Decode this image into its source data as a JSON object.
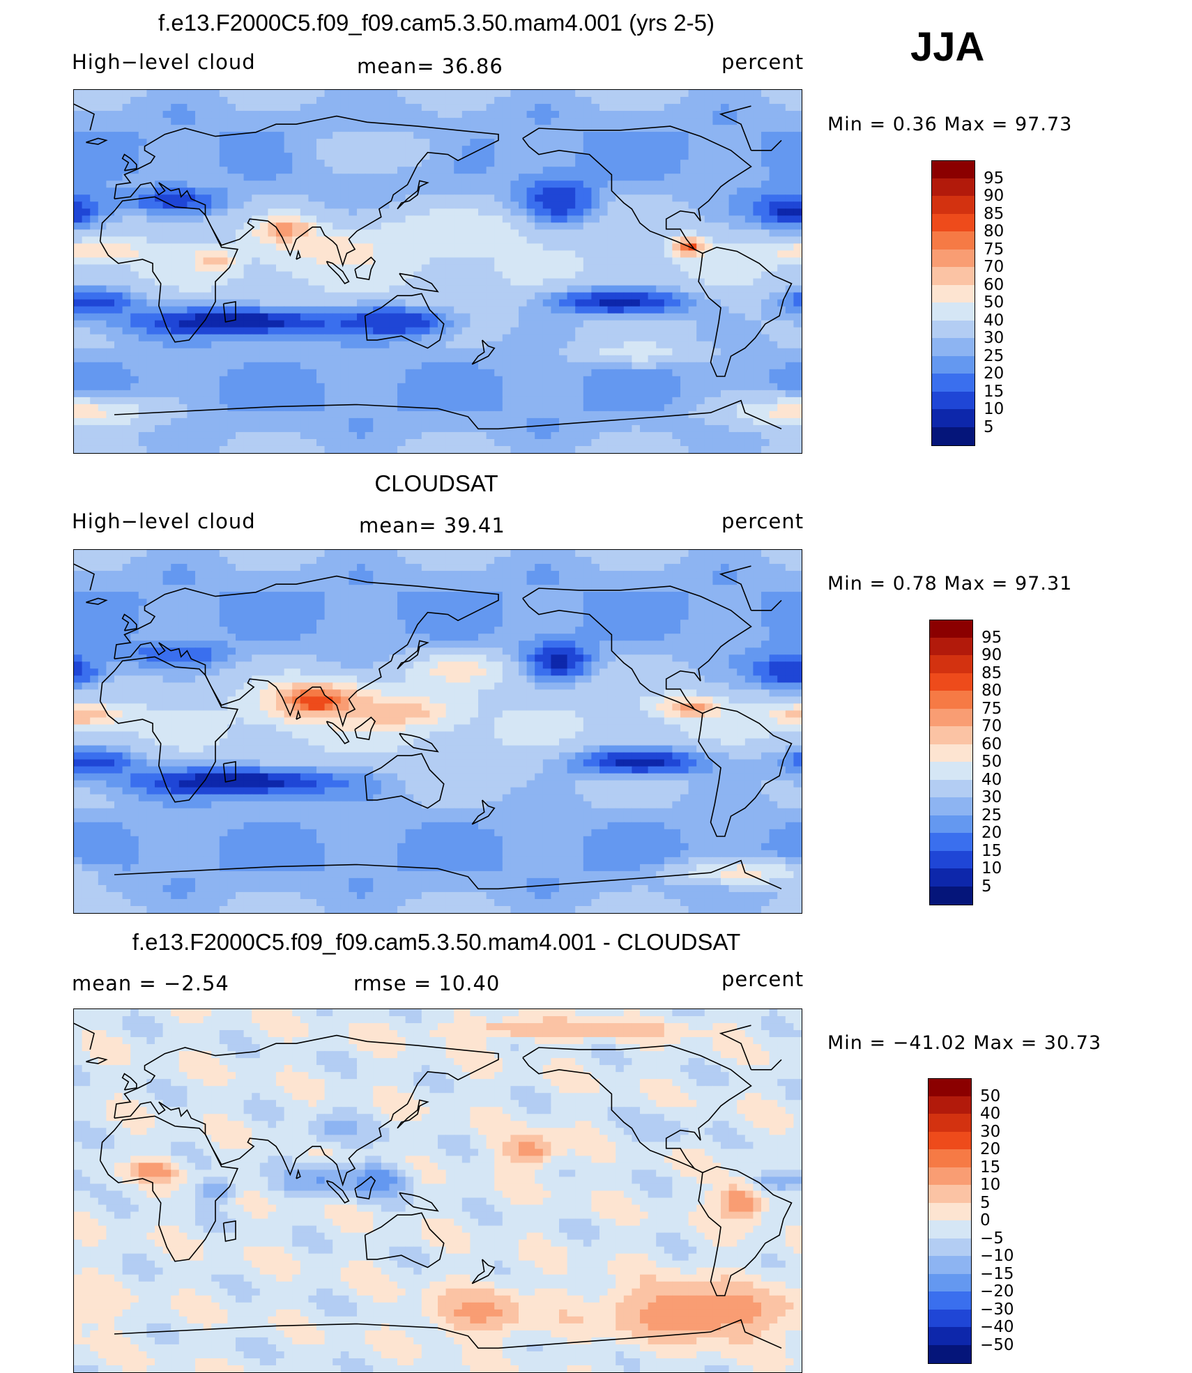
{
  "season": "JJA",
  "panels": [
    {
      "title": "f.e13.F2000C5.f09_f09.cam5.3.50.mam4.001 (yrs 2-5)",
      "left_label": "High−level cloud",
      "center_label": "mean=   36.86",
      "right_label": "percent",
      "stats": "Min  =    0.36  Max  =   97.73"
    },
    {
      "title": "CLOUDSAT",
      "left_label": "High−level cloud",
      "center_label": "mean=   39.41",
      "right_label": "percent",
      "stats": "Min  =    0.78  Max  =   97.31"
    },
    {
      "title": "f.e13.F2000C5.f09_f09.cam5.3.50.mam4.001 - CLOUDSAT",
      "left_label": "mean  =   −2.54",
      "center_label": "rmse  =   10.40",
      "right_label": "percent",
      "stats": "Min  = −41.02  Max  =   30.73"
    }
  ],
  "chart_data": [
    {
      "type": "heatmap",
      "title": "f.e13.F2000C5.f09_f09.cam5.3.50.mam4.001 (yrs 2-5)",
      "variable": "High−level cloud",
      "units": "percent",
      "mean": 36.86,
      "min": 0.36,
      "max": 97.73,
      "colorbar_levels": [
        "95",
        "90",
        "85",
        "80",
        "75",
        "70",
        "60",
        "50",
        "40",
        "30",
        "25",
        "20",
        "15",
        "10",
        "5"
      ],
      "colorbar_colors": [
        "#8b0000",
        "#b21a0b",
        "#d33210",
        "#ee4b1b",
        "#f67a45",
        "#f99d73",
        "#fbc3a4",
        "#fde4d1",
        "#d5e6f5",
        "#b3cdf3",
        "#8db4f2",
        "#6498f0",
        "#3a6fee",
        "#1f46d6",
        "#0d27ab",
        "#05157a"
      ],
      "blobs": [
        {
          "lon": 75,
          "lat": 20,
          "rx": 14,
          "ry": 7,
          "v": 80
        },
        {
          "lon": -85,
          "lat": 12,
          "rx": 8,
          "ry": 5,
          "v": 85
        },
        {
          "lon": -20,
          "lat": 10,
          "rx": 30,
          "ry": 5,
          "v": 60
        },
        {
          "lon": 100,
          "lat": 10,
          "rx": 30,
          "ry": 10,
          "v": 55
        },
        {
          "lon": 160,
          "lat": 20,
          "rx": 35,
          "ry": 10,
          "v": 50
        },
        {
          "lon": 40,
          "lat": 5,
          "rx": 10,
          "ry": 6,
          "v": 65
        },
        {
          "lon": 50,
          "lat": -25,
          "rx": 60,
          "ry": 8,
          "v": 5
        },
        {
          "lon": 130,
          "lat": -25,
          "rx": 30,
          "ry": 8,
          "v": 10
        },
        {
          "lon": -120,
          "lat": -15,
          "rx": 40,
          "ry": 8,
          "v": 8
        },
        {
          "lon": -20,
          "lat": -15,
          "rx": 25,
          "ry": 8,
          "v": 12
        },
        {
          "lon": -150,
          "lat": 35,
          "rx": 18,
          "ry": 12,
          "v": 10
        },
        {
          "lon": -35,
          "lat": 30,
          "rx": 22,
          "ry": 10,
          "v": 8
        },
        {
          "lon": 20,
          "lat": 35,
          "rx": 25,
          "ry": 6,
          "v": 12
        },
        {
          "lon": -30,
          "lat": -70,
          "rx": 40,
          "ry": 8,
          "v": 55
        },
        {
          "lon": -110,
          "lat": -40,
          "rx": 30,
          "ry": 6,
          "v": 45
        },
        {
          "lon": 120,
          "lat": 60,
          "rx": 40,
          "ry": 12,
          "v": 35
        }
      ]
    },
    {
      "type": "heatmap",
      "title": "CLOUDSAT",
      "variable": "High−level cloud",
      "units": "percent",
      "mean": 39.41,
      "min": 0.78,
      "max": 97.31,
      "colorbar_levels": [
        "95",
        "90",
        "85",
        "80",
        "75",
        "70",
        "60",
        "50",
        "40",
        "30",
        "25",
        "20",
        "15",
        "10",
        "5"
      ],
      "colorbar_colors": [
        "#8b0000",
        "#b21a0b",
        "#d33210",
        "#ee4b1b",
        "#f67a45",
        "#f99d73",
        "#fbc3a4",
        "#fde4d1",
        "#d5e6f5",
        "#b3cdf3",
        "#8db4f2",
        "#6498f0",
        "#3a6fee",
        "#1f46d6",
        "#0d27ab",
        "#05157a"
      ],
      "blobs": [
        {
          "lon": 90,
          "lat": 15,
          "rx": 25,
          "ry": 10,
          "v": 85
        },
        {
          "lon": 130,
          "lat": 10,
          "rx": 25,
          "ry": 8,
          "v": 70
        },
        {
          "lon": -85,
          "lat": 12,
          "rx": 15,
          "ry": 5,
          "v": 75
        },
        {
          "lon": -25,
          "lat": 8,
          "rx": 20,
          "ry": 5,
          "v": 70
        },
        {
          "lon": 160,
          "lat": 30,
          "rx": 25,
          "ry": 8,
          "v": 55
        },
        {
          "lon": 50,
          "lat": -25,
          "rx": 60,
          "ry": 8,
          "v": 5
        },
        {
          "lon": -110,
          "lat": -15,
          "rx": 40,
          "ry": 8,
          "v": 8
        },
        {
          "lon": -20,
          "lat": -15,
          "rx": 25,
          "ry": 8,
          "v": 12
        },
        {
          "lon": -150,
          "lat": 35,
          "rx": 16,
          "ry": 10,
          "v": 8
        },
        {
          "lon": -35,
          "lat": 30,
          "rx": 22,
          "ry": 10,
          "v": 10
        },
        {
          "lon": 20,
          "lat": 38,
          "rx": 25,
          "ry": 6,
          "v": 15
        },
        {
          "lon": -60,
          "lat": -70,
          "rx": 30,
          "ry": 6,
          "v": 55
        }
      ]
    },
    {
      "type": "heatmap",
      "title": "f.e13.F2000C5.f09_f09.cam5.3.50.mam4.001 - CLOUDSAT",
      "units": "percent",
      "mean": -2.54,
      "rmse": 10.4,
      "min": -41.02,
      "max": 30.73,
      "colorbar_levels": [
        "50",
        "40",
        "30",
        "20",
        "15",
        "10",
        "5",
        "0",
        "−5",
        "−10",
        "−15",
        "−20",
        "−30",
        "−40",
        "−50"
      ],
      "colorbar_colors": [
        "#8b0000",
        "#b21a0b",
        "#d33210",
        "#ee4b1b",
        "#f67a45",
        "#f99d73",
        "#fbc3a4",
        "#fde4d1",
        "#d5e6f5",
        "#b3cdf3",
        "#8db4f2",
        "#6498f0",
        "#3a6fee",
        "#1f46d6",
        "#0d27ab",
        "#05157a"
      ],
      "blobs": [
        {
          "lon": -80,
          "lat": -60,
          "rx": 50,
          "ry": 15,
          "v": 15
        },
        {
          "lon": 170,
          "lat": -60,
          "rx": 25,
          "ry": 12,
          "v": 12
        },
        {
          "lon": -165,
          "lat": 20,
          "rx": 15,
          "ry": 8,
          "v": 12
        },
        {
          "lon": -60,
          "lat": -5,
          "rx": 12,
          "ry": 10,
          "v": 15
        },
        {
          "lon": 10,
          "lat": 10,
          "rx": 12,
          "ry": 5,
          "v": 15
        },
        {
          "lon": 90,
          "lat": 5,
          "rx": 20,
          "ry": 8,
          "v": -15
        },
        {
          "lon": 120,
          "lat": 5,
          "rx": 15,
          "ry": 8,
          "v": -20
        },
        {
          "lon": -40,
          "lat": 5,
          "rx": 15,
          "ry": 6,
          "v": -15
        },
        {
          "lon": 40,
          "lat": 0,
          "rx": 10,
          "ry": 5,
          "v": -15
        },
        {
          "lon": 100,
          "lat": 30,
          "rx": 15,
          "ry": 8,
          "v": -12
        },
        {
          "lon": -100,
          "lat": 30,
          "rx": 15,
          "ry": 8,
          "v": -8
        },
        {
          "lon": -150,
          "lat": 80,
          "rx": 60,
          "ry": 5,
          "v": 10
        }
      ]
    }
  ]
}
